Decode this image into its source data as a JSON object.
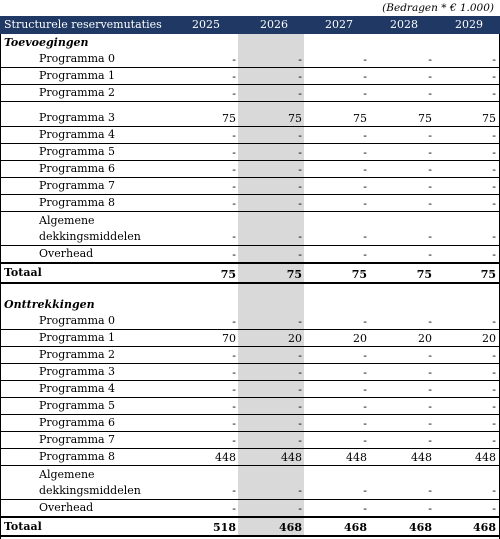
{
  "caption": "(Bedragen * € 1.000)",
  "header": {
    "title": "Structurele reservemutaties",
    "years": [
      "2025",
      "2026",
      "2027",
      "2028",
      "2029"
    ]
  },
  "toevoegingen": {
    "title": "Toevoegingen",
    "rows": [
      {
        "label": "Programma 0",
        "values": [
          "-",
          "-",
          "-",
          "-",
          "-"
        ]
      },
      {
        "label": "Programma 1",
        "values": [
          "-",
          "-",
          "-",
          "-",
          "-"
        ]
      },
      {
        "label": "Programma 2",
        "values": [
          "-",
          "-",
          "-",
          "-",
          "-"
        ]
      },
      {
        "label": "Programma 3",
        "values": [
          "75",
          "75",
          "75",
          "75",
          "75"
        ]
      },
      {
        "label": "Programma 4",
        "values": [
          "-",
          "-",
          "-",
          "-",
          "-"
        ]
      },
      {
        "label": "Programma 5",
        "values": [
          "-",
          "-",
          "-",
          "-",
          "-"
        ]
      },
      {
        "label": "Programma 6",
        "values": [
          "-",
          "-",
          "-",
          "-",
          "-"
        ]
      },
      {
        "label": "Programma 7",
        "values": [
          "-",
          "-",
          "-",
          "-",
          "-"
        ]
      },
      {
        "label": "Programma 8",
        "values": [
          "-",
          "-",
          "-",
          "-",
          "-"
        ]
      },
      {
        "label": "Algemene dekkingsmiddelen",
        "label_line1": "Algemene",
        "label_line2": "dekkingsmiddelen",
        "values": [
          "-",
          "-",
          "-",
          "-",
          "-"
        ]
      },
      {
        "label": "Overhead",
        "values": [
          "-",
          "-",
          "-",
          "-",
          "-"
        ]
      }
    ],
    "total": {
      "label": "Totaal",
      "values": [
        "75",
        "75",
        "75",
        "75",
        "75"
      ]
    }
  },
  "onttrekkingen": {
    "title": "Onttrekkingen",
    "rows": [
      {
        "label": "Programma 0",
        "values": [
          "-",
          "-",
          "-",
          "-",
          "-"
        ]
      },
      {
        "label": "Programma 1",
        "values": [
          "70",
          "20",
          "20",
          "20",
          "20"
        ]
      },
      {
        "label": "Programma 2",
        "values": [
          "-",
          "-",
          "-",
          "-",
          "-"
        ]
      },
      {
        "label": "Programma 3",
        "values": [
          "-",
          "-",
          "-",
          "-",
          "-"
        ]
      },
      {
        "label": "Programma 4",
        "values": [
          "-",
          "-",
          "-",
          "-",
          "-"
        ]
      },
      {
        "label": "Programma 5",
        "values": [
          "-",
          "-",
          "-",
          "-",
          "-"
        ]
      },
      {
        "label": "Programma 6",
        "values": [
          "-",
          "-",
          "-",
          "-",
          "-"
        ]
      },
      {
        "label": "Programma 7",
        "values": [
          "-",
          "-",
          "-",
          "-",
          "-"
        ]
      },
      {
        "label": "Programma 8",
        "values": [
          "448",
          "448",
          "448",
          "448",
          "448"
        ]
      },
      {
        "label": "Algemene dekkingsmiddelen",
        "label_line1": "Algemene",
        "label_line2": "dekkingsmiddelen",
        "values": [
          "-",
          "-",
          "-",
          "-",
          "-"
        ]
      },
      {
        "label": "Overhead",
        "values": [
          "-",
          "-",
          "-",
          "-",
          "-"
        ]
      }
    ],
    "total": {
      "label": "Totaal",
      "values": [
        "518",
        "468",
        "468",
        "468",
        "468"
      ]
    }
  },
  "colors": {
    "header_bg": "#1f3864",
    "highlight_column": "#d9d9d9"
  }
}
